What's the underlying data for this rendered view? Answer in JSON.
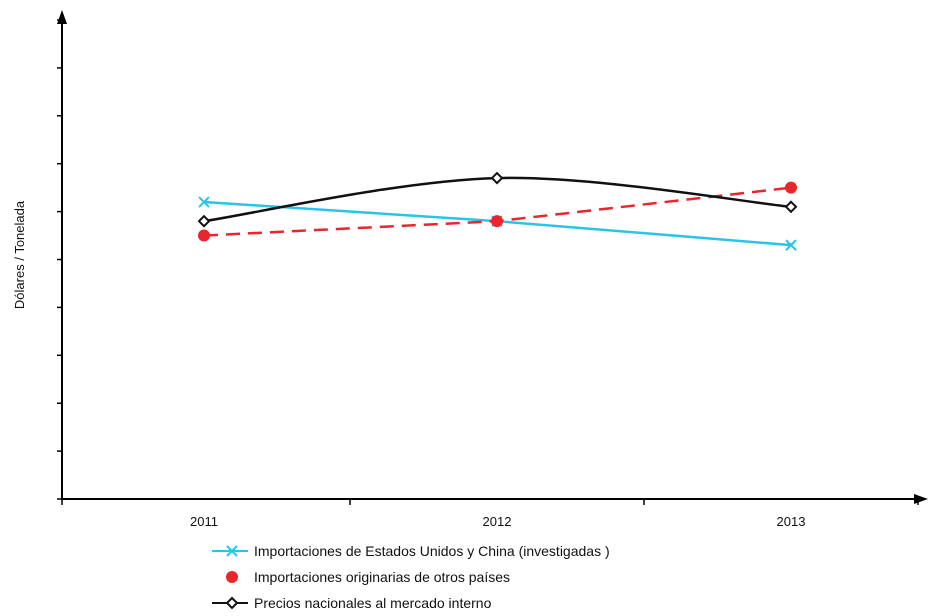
{
  "chart_data": {
    "type": "line",
    "ylabel": "Dólares / Tonelada",
    "xlabel": "",
    "categories": [
      "2011",
      "2012",
      "2013"
    ],
    "ylim": [
      0,
      100
    ],
    "y_ticks_labeled": false,
    "series": [
      {
        "name": "Importaciones de Estados Unidos y China (investigadas )",
        "values": [
          62,
          58,
          53
        ],
        "color": "#29c4e8",
        "marker": "x",
        "line_style": "solid",
        "smooth": false
      },
      {
        "name": "Importaciones originarias de otros países",
        "values": [
          55,
          58,
          65
        ],
        "color": "#e8262b",
        "marker": "filled-circle",
        "line_style": "dashed",
        "smooth": false
      },
      {
        "name": "Precios nacionales al mercado interno",
        "values": [
          58,
          67,
          61
        ],
        "color": "#111111",
        "marker": "open-diamond",
        "line_style": "solid",
        "smooth": true
      }
    ],
    "legend_position": "bottom-center",
    "grid": false
  }
}
